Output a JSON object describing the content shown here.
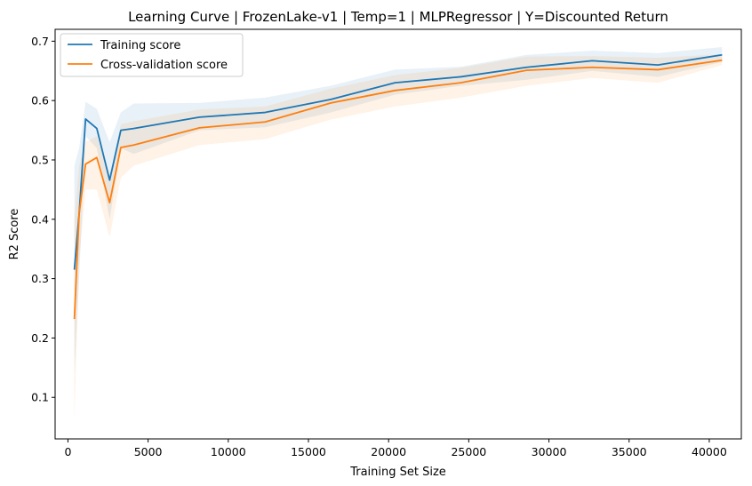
{
  "chart_data": {
    "type": "line",
    "title": "Learning Curve | FrozenLake-v1 | Temp=1 | MLPRegressor | Y=Discounted Return",
    "xlabel": "Training Set Size",
    "ylabel": "R2 Score",
    "xlim": [
      -800,
      42000
    ],
    "ylim": [
      0.03,
      0.72
    ],
    "xticks": [
      0,
      5000,
      10000,
      15000,
      20000,
      25000,
      30000,
      35000,
      40000
    ],
    "yticks": [
      0.1,
      0.2,
      0.3,
      0.4,
      0.5,
      0.6,
      0.7
    ],
    "legend_position": "top-left",
    "x": [
      400,
      700,
      1100,
      1800,
      2600,
      3300,
      4100,
      8200,
      12300,
      16400,
      20400,
      24500,
      28600,
      32700,
      36800,
      40800
    ],
    "series": [
      {
        "name": "Training score",
        "color": "#1f77b4",
        "values": [
          0.315,
          0.41,
          0.569,
          0.553,
          0.466,
          0.55,
          0.553,
          0.572,
          0.58,
          0.602,
          0.63,
          0.64,
          0.656,
          0.667,
          0.66,
          0.677
        ],
        "band_lower": [
          0.14,
          0.3,
          0.54,
          0.52,
          0.4,
          0.52,
          0.51,
          0.55,
          0.555,
          0.58,
          0.61,
          0.625,
          0.635,
          0.65,
          0.64,
          0.665
        ],
        "band_upper": [
          0.49,
          0.52,
          0.598,
          0.586,
          0.53,
          0.58,
          0.595,
          0.596,
          0.605,
          0.625,
          0.652,
          0.657,
          0.677,
          0.684,
          0.68,
          0.69
        ]
      },
      {
        "name": "Cross-validation score",
        "color": "#ff7f0e",
        "values": [
          0.232,
          0.41,
          0.493,
          0.504,
          0.428,
          0.521,
          0.525,
          0.554,
          0.564,
          0.596,
          0.617,
          0.63,
          0.651,
          0.656,
          0.652,
          0.668
        ],
        "band_lower": [
          0.06,
          0.33,
          0.45,
          0.45,
          0.37,
          0.47,
          0.49,
          0.525,
          0.535,
          0.568,
          0.59,
          0.605,
          0.625,
          0.638,
          0.63,
          0.66
        ],
        "band_upper": [
          0.4,
          0.49,
          0.53,
          0.54,
          0.47,
          0.56,
          0.565,
          0.585,
          0.59,
          0.62,
          0.643,
          0.655,
          0.674,
          0.675,
          0.672,
          0.678
        ]
      }
    ]
  }
}
